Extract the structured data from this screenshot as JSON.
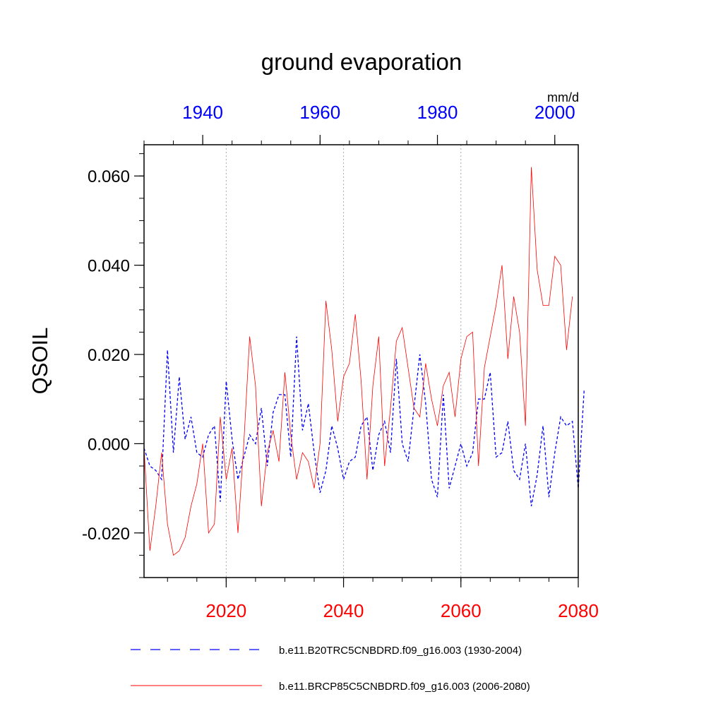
{
  "chart_data": {
    "type": "line",
    "title": "ground evaporation",
    "units": "mm/d",
    "ylabel": "QSOIL",
    "ylim": [
      -0.03,
      0.067
    ],
    "yticks": [
      -0.02,
      0.0,
      0.02,
      0.04,
      0.06
    ],
    "ytick_labels": [
      "-0.020",
      "0.000",
      "0.020",
      "0.040",
      "0.060"
    ],
    "y_minor_step": 0.005,
    "colors": {
      "top_axis": "#0000ff",
      "bottom_axis": "#ff0000",
      "ref_series": "#0000ff",
      "proj_series": "#ff0000",
      "grid": "#aaaaaa"
    },
    "bottom_axis": {
      "range": [
        2006,
        2080
      ],
      "ticks": [
        2020,
        2040,
        2060,
        2080
      ],
      "tick_labels": [
        "2020",
        "2040",
        "2060",
        "2080"
      ],
      "minor_step": 5,
      "gridlines": [
        2020,
        2040,
        2060
      ]
    },
    "top_axis": {
      "range": [
        1930,
        2004
      ],
      "ticks": [
        1940,
        1960,
        1980,
        2000
      ],
      "tick_labels": [
        "1940",
        "1960",
        "1980",
        "2000"
      ],
      "minor_step": 5
    },
    "series": [
      {
        "name": "b.e11.B20TRC5CNBDRD.f09_g16.003 (1930-2004)",
        "axis": "top",
        "style": "dashed",
        "x_start": 1930,
        "values": [
          -0.001,
          -0.005,
          -0.006,
          -0.008,
          0.021,
          -0.002,
          0.015,
          0.001,
          0.006,
          -0.002,
          -0.003,
          0.002,
          0.004,
          -0.013,
          0.014,
          0.001,
          -0.008,
          -0.003,
          0.002,
          0.0,
          0.008,
          -0.005,
          0.007,
          0.011,
          0.011,
          -0.003,
          0.024,
          0.003,
          0.009,
          -0.002,
          -0.011,
          -0.006,
          0.004,
          -0.001,
          -0.008,
          -0.004,
          -0.003,
          0.004,
          0.006,
          -0.006,
          0.002,
          0.005,
          -0.002,
          0.019,
          0.0,
          -0.004,
          0.008,
          0.02,
          0.009,
          -0.008,
          -0.012,
          0.011,
          -0.01,
          -0.005,
          0.0,
          -0.005,
          -0.002,
          0.01,
          0.01,
          0.016,
          -0.003,
          -0.002,
          0.005,
          -0.006,
          -0.008,
          0.0,
          -0.014,
          -0.007,
          0.004,
          -0.012,
          -0.002,
          0.006,
          0.004,
          0.005,
          -0.01,
          0.012
        ]
      },
      {
        "name": "b.e11.BRCP85C5CNBDRD.f09_g16.003 (2006-2080)",
        "axis": "bottom",
        "style": "solid",
        "x_start": 2006,
        "values": [
          -0.001,
          -0.024,
          -0.014,
          -0.002,
          -0.018,
          -0.025,
          -0.024,
          -0.021,
          -0.014,
          -0.009,
          0.0,
          -0.02,
          -0.018,
          0.006,
          -0.008,
          -0.001,
          -0.02,
          0.0,
          0.024,
          0.013,
          -0.014,
          -0.002,
          0.003,
          -0.004,
          0.016,
          0.002,
          -0.008,
          -0.002,
          -0.004,
          -0.01,
          0.0,
          0.032,
          0.021,
          0.005,
          0.015,
          0.018,
          0.029,
          0.014,
          -0.008,
          0.013,
          0.024,
          -0.005,
          0.008,
          0.023,
          0.026,
          0.017,
          0.008,
          0.006,
          0.018,
          0.01,
          0.004,
          0.013,
          0.016,
          0.006,
          0.019,
          0.024,
          0.025,
          -0.005,
          0.017,
          0.024,
          0.031,
          0.04,
          0.019,
          0.033,
          0.025,
          0.004,
          0.062,
          0.039,
          0.031,
          0.031,
          0.042,
          0.04,
          0.021,
          0.033
        ]
      }
    ]
  }
}
